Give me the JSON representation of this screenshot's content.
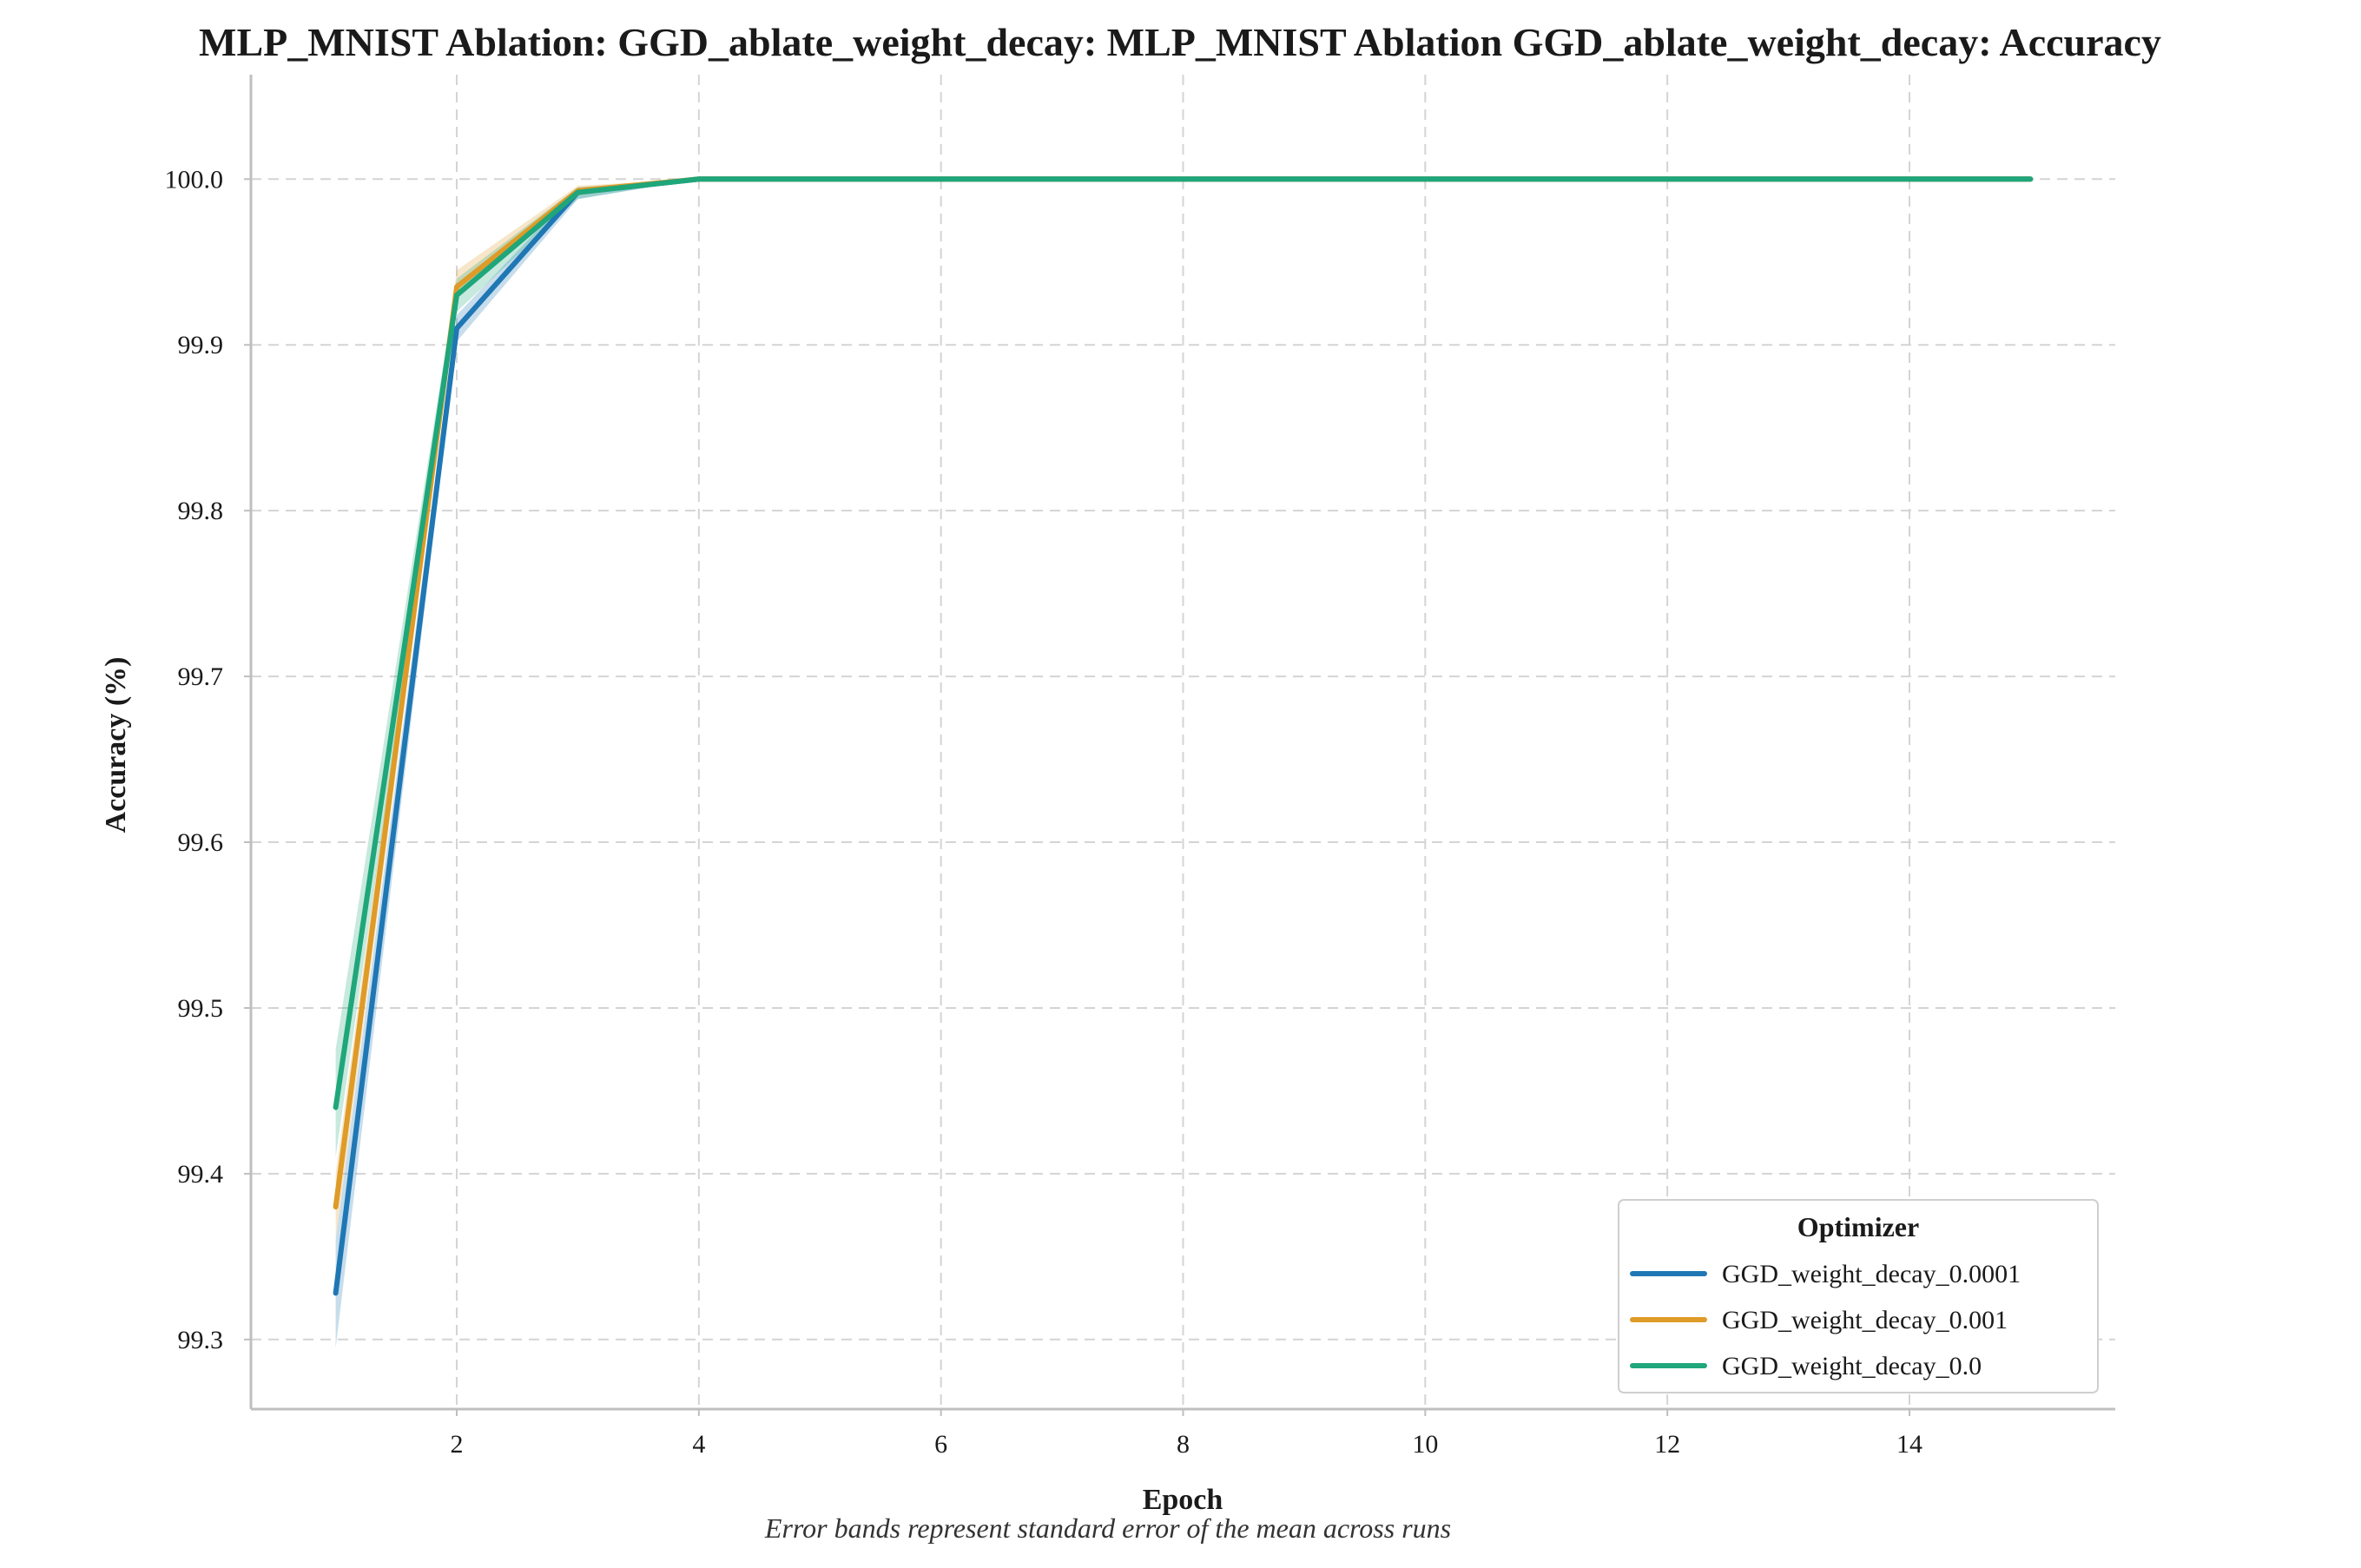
{
  "chart_data": {
    "type": "line",
    "title": "MLP_MNIST Ablation: GGD_ablate_weight_decay: MLP_MNIST Ablation GGD_ablate_weight_decay: Accuracy",
    "xlabel": "Epoch",
    "ylabel": "Accuracy (%)",
    "caption": "Error bands represent standard error of the mean across runs",
    "xlim": [
      0.3,
      15.7
    ],
    "ylim": [
      99.258,
      100.063
    ],
    "xticks": [
      2,
      4,
      6,
      8,
      10,
      12,
      14
    ],
    "yticks": [
      99.3,
      99.4,
      99.5,
      99.6,
      99.7,
      99.8,
      99.9,
      100.0
    ],
    "ytick_labels": [
      "99.3",
      "99.4",
      "99.5",
      "99.6",
      "99.7",
      "99.8",
      "99.9",
      "100.0"
    ],
    "grid": true,
    "legend": {
      "title": "Optimizer",
      "position": "lower-right"
    },
    "x": [
      1,
      2,
      3,
      4,
      5,
      6,
      7,
      8,
      9,
      10,
      11,
      12,
      13,
      14,
      15
    ],
    "series": [
      {
        "name": "GGD_weight_decay_0.0001",
        "color": "#1f77b4",
        "values": [
          99.328,
          99.91,
          99.992,
          100.0,
          100.0,
          100.0,
          100.0,
          100.0,
          100.0,
          100.0,
          100.0,
          100.0,
          100.0,
          100.0,
          100.0
        ],
        "lower": [
          99.295,
          99.902,
          99.988,
          100.0,
          100.0,
          100.0,
          100.0,
          100.0,
          100.0,
          100.0,
          100.0,
          100.0,
          100.0,
          100.0,
          100.0
        ],
        "upper": [
          99.36,
          99.918,
          99.995,
          100.0,
          100.0,
          100.0,
          100.0,
          100.0,
          100.0,
          100.0,
          100.0,
          100.0,
          100.0,
          100.0,
          100.0
        ]
      },
      {
        "name": "GGD_weight_decay_0.001",
        "color": "#de9b28",
        "values": [
          99.38,
          99.935,
          99.993,
          100.0,
          100.0,
          100.0,
          100.0,
          100.0,
          100.0,
          100.0,
          100.0,
          100.0,
          100.0,
          100.0,
          100.0
        ],
        "lower": [
          99.36,
          99.928,
          99.99,
          100.0,
          100.0,
          100.0,
          100.0,
          100.0,
          100.0,
          100.0,
          100.0,
          100.0,
          100.0,
          100.0,
          100.0
        ],
        "upper": [
          99.4,
          99.945,
          99.996,
          100.0,
          100.0,
          100.0,
          100.0,
          100.0,
          100.0,
          100.0,
          100.0,
          100.0,
          100.0,
          100.0,
          100.0
        ]
      },
      {
        "name": "GGD_weight_decay_0.0",
        "color": "#1fa67a",
        "values": [
          99.44,
          99.93,
          99.992,
          100.0,
          100.0,
          100.0,
          100.0,
          100.0,
          100.0,
          100.0,
          100.0,
          100.0,
          100.0,
          100.0,
          100.0
        ],
        "lower": [
          99.41,
          99.92,
          99.988,
          100.0,
          100.0,
          100.0,
          100.0,
          100.0,
          100.0,
          100.0,
          100.0,
          100.0,
          100.0,
          100.0,
          100.0
        ],
        "upper": [
          99.475,
          99.94,
          99.995,
          100.0,
          100.0,
          100.0,
          100.0,
          100.0,
          100.0,
          100.0,
          100.0,
          100.0,
          100.0,
          100.0,
          100.0
        ]
      }
    ]
  }
}
